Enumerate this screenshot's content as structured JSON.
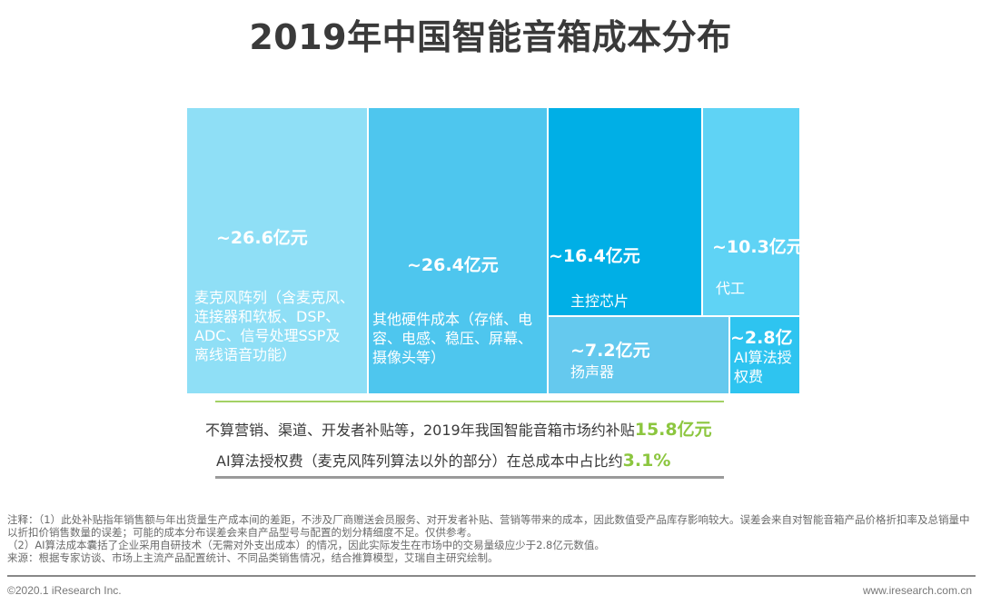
{
  "title": "2019年中国智能音箱成本分布",
  "chart_data": {
    "type": "treemap",
    "title": "2019年中国智能音箱成本分布",
    "unit": "亿元",
    "items": [
      {
        "value_label": "~26.6亿元",
        "value": 26.6,
        "label": "麦克风阵列（含麦克风、连接器和软板、DSP、ADC、信号处理SSP及离线语音功能）",
        "color": "#8fdff6"
      },
      {
        "value_label": "~26.4亿元",
        "value": 26.4,
        "label": "其他硬件成本（存储、电容、电感、稳压、屏幕、摄像头等）",
        "color": "#4ec6ee"
      },
      {
        "value_label": "~16.4亿元",
        "value": 16.4,
        "label": "主控芯片",
        "color": "#00afe6"
      },
      {
        "value_label": "~10.3亿元",
        "value": 10.3,
        "label": "代工",
        "color": "#5fd3f5"
      },
      {
        "value_label": "~7.2亿元",
        "value": 7.2,
        "label": "扬声器",
        "color": "#65c9ee"
      },
      {
        "value_label": "~2.8亿",
        "value": 2.8,
        "label": "AI算法授权费",
        "color": "#2ec4f0"
      }
    ]
  },
  "summary": {
    "line1_text": "不算营销、渠道、开发者补贴等，2019年我国智能音箱市场约补贴",
    "line1_highlight": "15.8亿元",
    "line2_text": "AI算法授权费（麦克风阵列算法以外的部分）在总成本中占比约",
    "line2_highlight": "3.1%",
    "highlight_color": "#8cc63f"
  },
  "notes": {
    "note1": "注释：（1）此处补贴指年销售额与年出货量生产成本间的差距，不涉及厂商赠送会员服务、对开发者补贴、营销等带来的成本，因此数值受产品库存影响较大。误差会来自对智能音箱产品价格折扣率及总销量中以折扣价销售数量的误差；可能的成本分布误差会来自产品型号与配置的划分精细度不足。仅供参考。",
    "note2": "（2）AI算法成本囊括了企业采用自研技术（无需对外支出成本）的情况，因此实际发生在市场中的交易量级应少于2.8亿元数值。",
    "source": "来源：根据专家访谈、市场上主流产品配置统计、不同品类销售情况，结合推算模型，艾瑞自主研究绘制。"
  },
  "footer": {
    "copyright": "©2020.1 iResearch Inc.",
    "website": "www.iresearch.com.cn"
  }
}
